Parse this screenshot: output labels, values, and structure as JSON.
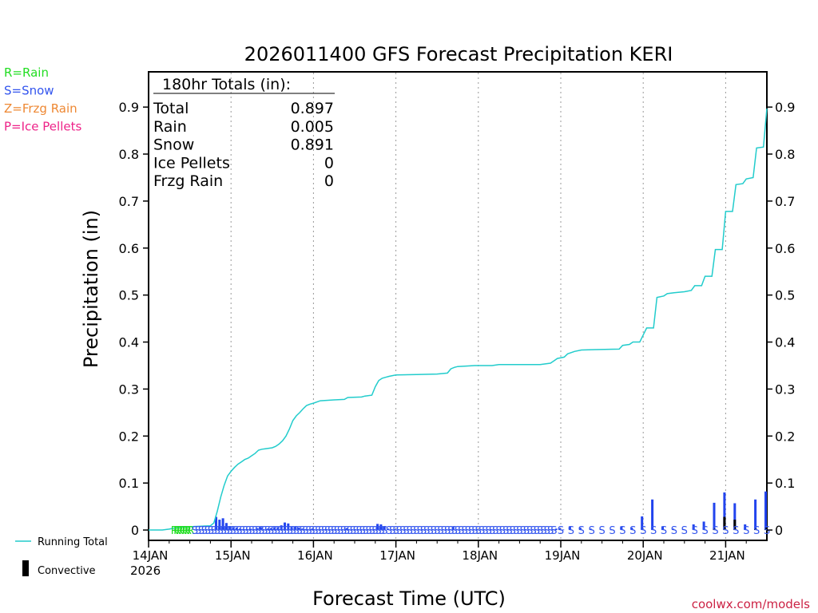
{
  "chart_data": {
    "type": "line",
    "title": "2026011400 GFS Forecast Precipitation KERI",
    "xlabel": "Forecast Time (UTC)",
    "ylabel": "Precipitation (in)",
    "ylim": [
      -0.022,
      0.975
    ],
    "xlim": [
      0,
      180
    ],
    "y_ticks": [
      "0",
      "0.1",
      "0.2",
      "0.3",
      "0.4",
      "0.5",
      "0.6",
      "0.7",
      "0.8",
      "0.9"
    ],
    "y_tick_values": [
      0,
      0.1,
      0.2,
      0.3,
      0.4,
      0.5,
      0.6,
      0.7,
      0.8,
      0.9
    ],
    "x_ticks": [
      {
        "hour": 0,
        "label": "14JAN"
      },
      {
        "hour": 24,
        "label": "15JAN"
      },
      {
        "hour": 48,
        "label": "16JAN"
      },
      {
        "hour": 72,
        "label": "17JAN"
      },
      {
        "hour": 96,
        "label": "18JAN"
      },
      {
        "hour": 120,
        "label": "19JAN"
      },
      {
        "hour": 144,
        "label": "20JAN"
      },
      {
        "hour": 168,
        "label": "21JAN"
      }
    ],
    "x_year_label": "2026",
    "grid": "vertical dotted at day boundaries",
    "totals_box": {
      "title": "180hr Totals (in):",
      "rows": [
        {
          "label": "Total",
          "value": "0.897"
        },
        {
          "label": "Rain",
          "value": "0.005"
        },
        {
          "label": "Snow",
          "value": "0.891"
        },
        {
          "label": "Ice Pellets",
          "value": "0"
        },
        {
          "label": "Frzg Rain",
          "value": "0"
        }
      ]
    },
    "precip_type_legend": [
      {
        "label": "R=Rain",
        "color": "#22dd22"
      },
      {
        "label": "S=Snow",
        "color": "#3355ee"
      },
      {
        "label": "Z=Frzg Rain",
        "color": "#ee8833"
      },
      {
        "label": "P=Ice Pellets",
        "color": "#ee2288"
      }
    ],
    "series_legend": [
      {
        "label": "Running Total",
        "color": "#22cccc"
      },
      {
        "label": "Convective",
        "color": "#000000"
      }
    ],
    "running_total": {
      "name": "Running Total",
      "color": "#22cccc",
      "points": [
        [
          0,
          0
        ],
        [
          4,
          0
        ],
        [
          6,
          0.002
        ],
        [
          8,
          0.005
        ],
        [
          12,
          0.007
        ],
        [
          18,
          0.009
        ],
        [
          19,
          0.015
        ],
        [
          20,
          0.04
        ],
        [
          21,
          0.07
        ],
        [
          22,
          0.095
        ],
        [
          23,
          0.115
        ],
        [
          24,
          0.125
        ],
        [
          25,
          0.133
        ],
        [
          26,
          0.14
        ],
        [
          27,
          0.145
        ],
        [
          28,
          0.15
        ],
        [
          29,
          0.153
        ],
        [
          30,
          0.158
        ],
        [
          31,
          0.163
        ],
        [
          32,
          0.17
        ],
        [
          33,
          0.172
        ],
        [
          34,
          0.173
        ],
        [
          36,
          0.175
        ],
        [
          37,
          0.178
        ],
        [
          38,
          0.183
        ],
        [
          39,
          0.19
        ],
        [
          40,
          0.2
        ],
        [
          41,
          0.215
        ],
        [
          42,
          0.233
        ],
        [
          43,
          0.243
        ],
        [
          44,
          0.25
        ],
        [
          45,
          0.258
        ],
        [
          46,
          0.265
        ],
        [
          47,
          0.268
        ],
        [
          48,
          0.27
        ],
        [
          50,
          0.275
        ],
        [
          54,
          0.277
        ],
        [
          57,
          0.278
        ],
        [
          58,
          0.282
        ],
        [
          62,
          0.283
        ],
        [
          63,
          0.285
        ],
        [
          65,
          0.287
        ],
        [
          66,
          0.305
        ],
        [
          67,
          0.318
        ],
        [
          68,
          0.323
        ],
        [
          69,
          0.325
        ],
        [
          70,
          0.327
        ],
        [
          72,
          0.33
        ],
        [
          78,
          0.331
        ],
        [
          84,
          0.332
        ],
        [
          87,
          0.334
        ],
        [
          88,
          0.343
        ],
        [
          89,
          0.346
        ],
        [
          90,
          0.348
        ],
        [
          95,
          0.35
        ],
        [
          100,
          0.35
        ],
        [
          102,
          0.352
        ],
        [
          114,
          0.352
        ],
        [
          117,
          0.355
        ],
        [
          118,
          0.36
        ],
        [
          119,
          0.365
        ],
        [
          121,
          0.368
        ],
        [
          122,
          0.375
        ],
        [
          124,
          0.38
        ],
        [
          126,
          0.383
        ],
        [
          130,
          0.384
        ],
        [
          137,
          0.385
        ],
        [
          138,
          0.393
        ],
        [
          140,
          0.395
        ],
        [
          141,
          0.4
        ],
        [
          143,
          0.4
        ],
        [
          144,
          0.415
        ],
        [
          145,
          0.43
        ],
        [
          147,
          0.43
        ],
        [
          148,
          0.495
        ],
        [
          150,
          0.498
        ],
        [
          151,
          0.503
        ],
        [
          153,
          0.505
        ],
        [
          156,
          0.507
        ],
        [
          158,
          0.51
        ],
        [
          159,
          0.52
        ],
        [
          161,
          0.52
        ],
        [
          162,
          0.54
        ],
        [
          164,
          0.54
        ],
        [
          165,
          0.597
        ],
        [
          167,
          0.597
        ],
        [
          168,
          0.678
        ],
        [
          170,
          0.678
        ],
        [
          171,
          0.735
        ],
        [
          173,
          0.737
        ],
        [
          174,
          0.747
        ],
        [
          176,
          0.75
        ],
        [
          177,
          0.813
        ],
        [
          179,
          0.815
        ],
        [
          180,
          0.897
        ]
      ]
    },
    "interval_bars": {
      "name": "Interval precipitation",
      "color": "#2244ee",
      "hours": [
        8,
        12,
        19,
        20,
        21,
        22,
        23,
        24,
        25,
        26,
        27,
        28,
        29,
        30,
        31,
        32,
        33,
        34,
        35,
        36,
        37,
        38,
        39,
        40,
        41,
        42,
        43,
        44,
        45,
        46,
        47,
        48,
        50,
        52,
        54,
        58,
        61,
        66,
        67,
        68,
        69,
        70,
        72,
        75,
        80,
        87,
        88,
        89,
        92,
        96,
        100,
        105,
        110,
        114,
        118,
        119,
        120,
        121,
        123,
        126,
        129,
        132,
        135,
        138,
        141,
        144,
        147,
        150,
        153,
        156,
        159,
        162,
        165,
        168,
        171,
        174,
        177,
        180
      ],
      "values": [
        0.001,
        0.001,
        0.002,
        0.028,
        0.022,
        0.025,
        0.015,
        0.008,
        0.006,
        0.005,
        0.003,
        0.002,
        0.002,
        0.003,
        0.002,
        0.004,
        0.006,
        0.001,
        0.003,
        0.004,
        0.006,
        0.006,
        0.01,
        0.016,
        0.014,
        0.006,
        0.007,
        0.005,
        0.003,
        0.002,
        0.001,
        0.003,
        0.001,
        0.002,
        0.001,
        0.004,
        0.001,
        0.002,
        0.013,
        0.012,
        0.008,
        0.003,
        0.002,
        0.001,
        0.001,
        0.001,
        0.002,
        0.007,
        0.001,
        0.001,
        0.001,
        0.001,
        0.001,
        0.001,
        0.002,
        0.003,
        0.004,
        0.001,
        0.008,
        0.005,
        0.003,
        0.002,
        0.001,
        0.008,
        0.005,
        0.029,
        0.065,
        0.008,
        0.003,
        0.002,
        0.012,
        0.018,
        0.058,
        0.08,
        0.057,
        0.012,
        0.065,
        0.082
      ]
    },
    "convective_bars": {
      "name": "Convective",
      "color": "#000000",
      "hours": [
        165,
        168,
        171,
        177,
        180
      ],
      "values": [
        0.003,
        0.028,
        0.022,
        0.003,
        0.005
      ]
    },
    "precip_type_markers": [
      {
        "from": 7.5,
        "to": 13,
        "step": 0.8,
        "char": "R",
        "color": "#22dd22"
      },
      {
        "from": 13.5,
        "to": 69,
        "step": 0.92,
        "char": "S",
        "color": "#3355ee"
      },
      {
        "from": 70,
        "to": 118,
        "step": 1.0,
        "char": "S",
        "color": "#3355ee"
      },
      {
        "from": 120,
        "to": 180,
        "step": 3,
        "char": "S",
        "color": "#3355ee"
      }
    ]
  },
  "watermark": "coolwx.com/models"
}
